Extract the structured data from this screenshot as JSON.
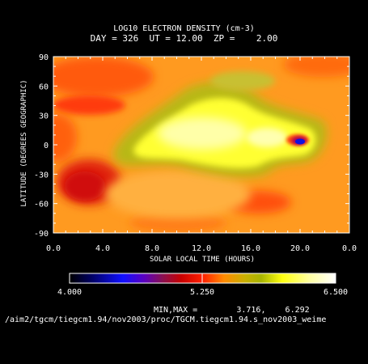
{
  "chart_data": {
    "type": "heatmap",
    "title": "LOG10 ELECTRON DENSITY (cm-3)",
    "subtitle": "DAY = 326  UT = 12.00  ZP =    2.00",
    "xlabel": "SOLAR LOCAL TIME (HOURS)",
    "ylabel": "LATITUDE (DEGREES GEOGRAPHIC)",
    "x_ticks": [
      "0.0",
      "4.0",
      "8.0",
      "12.0",
      "16.0",
      "20.0",
      "0.0"
    ],
    "y_ticks": [
      "90",
      "60",
      "30",
      "0",
      "-30",
      "-60",
      "-90"
    ],
    "xlim": [
      0,
      24
    ],
    "ylim": [
      -90,
      90
    ],
    "colorbar": {
      "min_label": "4.000",
      "mid_label": "5.250",
      "max_label": "6.500",
      "range": [
        4.0,
        6.5
      ]
    },
    "minmax_text": "MIN,MAX =        3.716,    6.292",
    "features": [
      {
        "slt": 12,
        "lat": 10,
        "value": 6.25
      },
      {
        "slt": 20,
        "lat": 2,
        "value": 3.72
      },
      {
        "slt": 3,
        "lat": -40,
        "value": 5.0
      },
      {
        "slt": 2,
        "lat": 60,
        "value": 5.1
      }
    ]
  },
  "footer": {
    "path": "/aim2/tgcm/tiegcm1.94/nov2003/proc/TGCM.tiegcm1.94.s_nov2003_weime"
  }
}
